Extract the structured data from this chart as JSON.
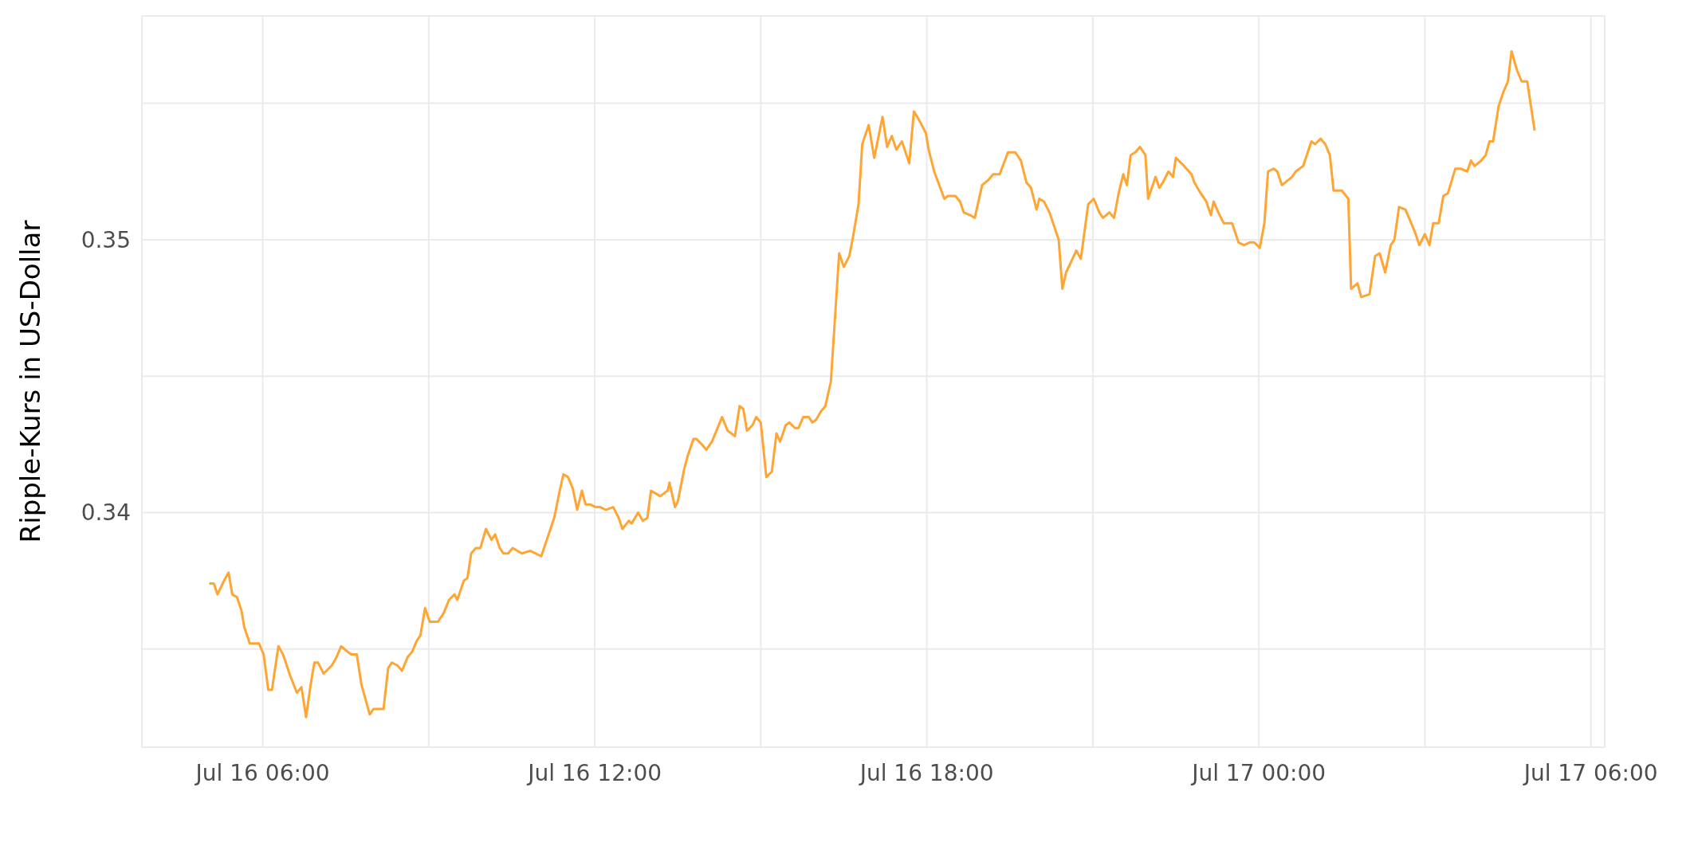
{
  "chart_data": {
    "type": "line",
    "ylabel": "Ripple-Kurs in US-Dollar",
    "xlim": [
      "--07-16T03:49",
      "--07-17T06:15"
    ],
    "xticks": [
      {
        "value": "--07-16T06:00",
        "label": "Jul 16 06:00"
      },
      {
        "value": "--07-16T09:00",
        "label": null
      },
      {
        "value": "--07-16T12:00",
        "label": "Jul 16 12:00"
      },
      {
        "value": "--07-16T15:00",
        "label": null
      },
      {
        "value": "--07-16T18:00",
        "label": "Jul 16 18:00"
      },
      {
        "value": "--07-16T21:00",
        "label": null
      },
      {
        "value": "--07-17T00:00",
        "label": "Jul 17 00:00"
      },
      {
        "value": "--07-17T03:00",
        "label": null
      },
      {
        "value": "--07-17T06:00",
        "label": "Jul 17 06:00"
      }
    ],
    "ylim": [
      0.3314,
      0.3582
    ],
    "yticks": [
      {
        "value": 0.335,
        "label": null
      },
      0.34,
      {
        "value": 0.345,
        "label": null
      },
      0.35,
      {
        "value": 0.355,
        "label": null
      }
    ],
    "grid": true,
    "legend": false,
    "series": [
      {
        "color": "#ffa533",
        "x": [
          "--07-16T05:02",
          "--07-16T05:07",
          "--07-16T05:11",
          "--07-16T05:18",
          "--07-16T05:23",
          "--07-16T05:27",
          "--07-16T05:32",
          "--07-16T05:37",
          "--07-16T05:40",
          "--07-16T05:46",
          "--07-16T05:52",
          "--07-16T05:56",
          "--07-16T06:01",
          "--07-16T06:06",
          "--07-16T06:10",
          "--07-16T06:17",
          "--07-16T06:22",
          "--07-16T06:30",
          "--07-16T06:37",
          "--07-16T06:42",
          "--07-16T06:47",
          "--07-16T06:52",
          "--07-16T06:56",
          "--07-16T07:00",
          "--07-16T07:06",
          "--07-16T07:15",
          "--07-16T07:20",
          "--07-16T07:25",
          "--07-16T07:32",
          "--07-16T07:36",
          "--07-16T07:42",
          "--07-16T07:47",
          "--07-16T07:56",
          "--07-16T08:00",
          "--07-16T08:07",
          "--07-16T08:11",
          "--07-16T08:16",
          "--07-16T08:20",
          "--07-16T08:26",
          "--07-16T08:31",
          "--07-16T08:37",
          "--07-16T08:42",
          "--07-16T08:47",
          "--07-16T08:51",
          "--07-16T08:56",
          "--07-16T09:01",
          "--07-16T09:06",
          "--07-16T09:10",
          "--07-16T09:16",
          "--07-16T09:22",
          "--07-16T09:28",
          "--07-16T09:31",
          "--07-16T09:38",
          "--07-16T09:42",
          "--07-16T09:46",
          "--07-16T09:51",
          "--07-16T09:56",
          "--07-16T10:02",
          "--07-16T10:08",
          "--07-16T10:12",
          "--07-16T10:17",
          "--07-16T10:21",
          "--07-16T10:26",
          "--07-16T10:31",
          "--07-16T10:41",
          "--07-16T10:50",
          "--07-16T10:56",
          "--07-16T11:02",
          "--07-16T11:16",
          "--07-16T11:22",
          "--07-16T11:26",
          "--07-16T11:31",
          "--07-16T11:36",
          "--07-16T11:41",
          "--07-16T11:46",
          "--07-16T11:50",
          "--07-16T11:55",
          "--07-16T12:01",
          "--07-16T12:06",
          "--07-16T12:12",
          "--07-16T12:20",
          "--07-16T12:26",
          "--07-16T12:30",
          "--07-16T12:37",
          "--07-16T12:40",
          "--07-16T12:47",
          "--07-16T12:52",
          "--07-16T12:57",
          "--07-16T13:01",
          "--07-16T13:11",
          "--07-16T13:19",
          "--07-16T13:21",
          "--07-16T13:27",
          "--07-16T13:30",
          "--07-16T13:37",
          "--07-16T13:41",
          "--07-16T13:47",
          "--07-16T13:50",
          "--07-16T13:56",
          "--07-16T14:01",
          "--07-16T14:07",
          "--07-16T14:12",
          "--07-16T14:18",
          "--07-16T14:24",
          "--07-16T14:32",
          "--07-16T14:37",
          "--07-16T14:41",
          "--07-16T14:45",
          "--07-16T14:51",
          "--07-16T14:55",
          "--07-16T15:00",
          "--07-16T15:06",
          "--07-16T15:12",
          "--07-16T15:17",
          "--07-16T15:21",
          "--07-16T15:27",
          "--07-16T15:31",
          "--07-16T15:37",
          "--07-16T15:41",
          "--07-16T15:46",
          "--07-16T15:52",
          "--07-16T15:56",
          "--07-16T16:00",
          "--07-16T16:05",
          "--07-16T16:10",
          "--07-16T16:16",
          "--07-16T16:25",
          "--07-16T16:30",
          "--07-16T16:36",
          "--07-16T16:40",
          "--07-16T16:46",
          "--07-16T16:50",
          "--07-16T16:57",
          "--07-16T17:03",
          "--07-16T17:12",
          "--07-16T17:17",
          "--07-16T17:22",
          "--07-16T17:27",
          "--07-16T17:33",
          "--07-16T17:41",
          "--07-16T17:46",
          "--07-16T17:53",
          "--07-16T17:59",
          "--07-16T18:02",
          "--07-16T18:08",
          "--07-16T18:19",
          "--07-16T18:23",
          "--07-16T18:31",
          "--07-16T18:36",
          "--07-16T18:40",
          "--07-16T18:47",
          "--07-16T18:52",
          "--07-16T19:00",
          "--07-16T19:07",
          "--07-16T19:12",
          "--07-16T19:19",
          "--07-16T19:28",
          "--07-16T19:36",
          "--07-16T19:42",
          "--07-16T19:48",
          "--07-16T19:53",
          "--07-16T19:59",
          "--07-16T20:02",
          "--07-16T20:07",
          "--07-16T20:13",
          "--07-16T20:19",
          "--07-16T20:23",
          "--07-16T20:27",
          "--07-16T20:31",
          "--07-16T20:38",
          "--07-16T20:42",
          "--07-16T20:47",
          "--07-16T20:55",
          "--07-16T21:01",
          "--07-16T21:07",
          "--07-16T21:11",
          "--07-16T21:18",
          "--07-16T21:23",
          "--07-16T21:28",
          "--07-16T21:33",
          "--07-16T21:37",
          "--07-16T21:41",
          "--07-16T21:46",
          "--07-16T21:51",
          "--07-16T21:57",
          "--07-16T22:00",
          "--07-16T22:08",
          "--07-16T22:12",
          "--07-16T22:16",
          "--07-16T22:22",
          "--07-16T22:27",
          "--07-16T22:30",
          "--07-16T22:39",
          "--07-16T22:47",
          "--07-16T22:50",
          "--07-16T22:57",
          "--07-16T23:03",
          "--07-16T23:08",
          "--07-16T23:11",
          "--07-16T23:16",
          "--07-16T23:22",
          "--07-16T23:31",
          "--07-16T23:38",
          "--07-16T23:44",
          "--07-16T23:50",
          "--07-16T23:55",
          "--07-17T00:01",
          "--07-17T00:06",
          "--07-17T00:10",
          "--07-17T00:16",
          "--07-17T00:20",
          "--07-17T00:25",
          "--07-17T00:36",
          "--07-17T00:40",
          "--07-17T00:48",
          "--07-17T00:53",
          "--07-17T00:57",
          "--07-17T01:01",
          "--07-17T01:07",
          "--07-17T01:12",
          "--07-17T01:17",
          "--07-17T01:21",
          "--07-17T01:30",
          "--07-17T01:37",
          "--07-17T01:40",
          "--07-17T01:47",
          "--07-17T01:51",
          "--07-17T02:00",
          "--07-17T02:06",
          "--07-17T02:11",
          "--07-17T02:17",
          "--07-17T02:23",
          "--07-17T02:27",
          "--07-17T02:32",
          "--07-17T02:39",
          "--07-17T02:44",
          "--07-17T02:49",
          "--07-17T02:54",
          "--07-17T03:00",
          "--07-17T03:05",
          "--07-17T03:09",
          "--07-17T03:15",
          "--07-17T03:20",
          "--07-17T03:25",
          "--07-17T03:33",
          "--07-17T03:39",
          "--07-17T03:46",
          "--07-17T03:50",
          "--07-17T03:54",
          "--07-17T04:01",
          "--07-17T04:06",
          "--07-17T04:10",
          "--07-17T04:14",
          "--07-17T04:20",
          "--07-17T04:25",
          "--07-17T04:30",
          "--07-17T04:34",
          "--07-17T04:40",
          "--07-17T04:45",
          "--07-17T04:51",
          "--07-17T04:55",
          "--07-17T04:59"
        ],
        "values": [
          0.3374,
          0.3374,
          0.337,
          0.3375,
          0.3378,
          0.337,
          0.3369,
          0.3364,
          0.3358,
          0.3352,
          0.3352,
          0.3352,
          0.3348,
          0.3335,
          0.3335,
          0.3351,
          0.3348,
          0.334,
          0.3334,
          0.3336,
          0.3325,
          0.3337,
          0.3345,
          0.3345,
          0.3341,
          0.3344,
          0.3347,
          0.3351,
          0.3349,
          0.3348,
          0.3348,
          0.3337,
          0.3326,
          0.3328,
          0.3328,
          0.3328,
          0.3343,
          0.3345,
          0.3344,
          0.3342,
          0.3347,
          0.3349,
          0.3353,
          0.3355,
          0.3365,
          0.336,
          0.336,
          0.336,
          0.3363,
          0.3368,
          0.337,
          0.3368,
          0.3375,
          0.3376,
          0.3385,
          0.3387,
          0.3387,
          0.3394,
          0.339,
          0.3392,
          0.3387,
          0.3385,
          0.3385,
          0.3387,
          0.3385,
          0.3386,
          0.3385,
          0.3384,
          0.3398,
          0.3408,
          0.3414,
          0.3413,
          0.3409,
          0.3401,
          0.3408,
          0.3403,
          0.3403,
          0.3402,
          0.3402,
          0.3401,
          0.3402,
          0.3398,
          0.3394,
          0.3397,
          0.3396,
          0.34,
          0.3397,
          0.3398,
          0.3408,
          0.3406,
          0.3408,
          0.3411,
          0.3402,
          0.3404,
          0.3416,
          0.3421,
          0.3427,
          0.3427,
          0.3425,
          0.3423,
          0.3426,
          0.343,
          0.3435,
          0.343,
          0.3428,
          0.3439,
          0.3438,
          0.343,
          0.3432,
          0.3435,
          0.3433,
          0.3413,
          0.3415,
          0.3429,
          0.3426,
          0.3432,
          0.3433,
          0.3431,
          0.3431,
          0.3435,
          0.3435,
          0.3433,
          0.3434,
          0.3437,
          0.3439,
          0.3448,
          0.3495,
          0.349,
          0.3494,
          0.3501,
          0.3513,
          0.3535,
          0.3542,
          0.353,
          0.3545,
          0.3534,
          0.3538,
          0.3533,
          0.3536,
          0.3528,
          0.3547,
          0.3543,
          0.3539,
          0.3533,
          0.3525,
          0.3515,
          0.3516,
          0.3516,
          0.3514,
          0.351,
          0.3509,
          0.3508,
          0.352,
          0.3522,
          0.3524,
          0.3524,
          0.3532,
          0.3532,
          0.3529,
          0.3521,
          0.3519,
          0.3511,
          0.3515,
          0.3514,
          0.351,
          0.3504,
          0.35,
          0.3482,
          0.3488,
          0.3493,
          0.3496,
          0.3493,
          0.3513,
          0.3515,
          0.351,
          0.3508,
          0.351,
          0.3508,
          0.3517,
          0.3524,
          0.352,
          0.3531,
          0.3532,
          0.3534,
          0.3531,
          0.3515,
          0.3523,
          0.3519,
          0.3521,
          0.3525,
          0.3523,
          0.353,
          0.3527,
          0.3524,
          0.3521,
          0.3517,
          0.3514,
          0.3509,
          0.3514,
          0.351,
          0.3506,
          0.3506,
          0.3499,
          0.3498,
          0.3499,
          0.3499,
          0.3497,
          0.3506,
          0.3525,
          0.3526,
          0.3525,
          0.352,
          0.3523,
          0.3525,
          0.3527,
          0.3532,
          0.3536,
          0.3535,
          0.3537,
          0.3535,
          0.3531,
          0.3518,
          0.3518,
          0.3515,
          0.3482,
          0.3484,
          0.3479,
          0.348,
          0.3494,
          0.3495,
          0.3488,
          0.3498,
          0.35,
          0.3512,
          0.3511,
          0.3507,
          0.3503,
          0.3498,
          0.3502,
          0.3498,
          0.3506,
          0.3506,
          0.3516,
          0.3517,
          0.3526,
          0.3526,
          0.3525,
          0.3529,
          0.3527,
          0.3529,
          0.3531,
          0.3536,
          0.3536,
          0.3549,
          0.3554,
          0.3558,
          0.3569,
          0.3562,
          0.3558,
          0.3558,
          0.3549,
          0.354
        ]
      }
    ]
  }
}
